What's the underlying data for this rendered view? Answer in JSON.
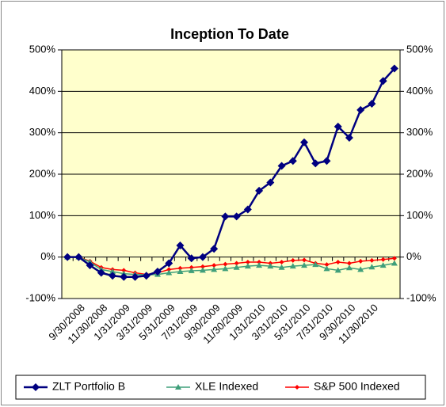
{
  "chart_data": {
    "type": "line",
    "title": "Inception To Date",
    "categories": [
      null,
      "9/30/2008",
      null,
      "11/30/2008",
      null,
      "1/31/2009",
      null,
      "3/31/2009",
      null,
      "5/31/2009",
      null,
      "7/31/2009",
      null,
      "9/30/2009",
      null,
      "11/30/2009",
      null,
      "1/31/2010",
      null,
      "3/31/2010",
      null,
      "5/31/2010",
      null,
      "7/31/2010",
      null,
      "9/30/2010",
      null,
      "11/30/2010",
      null,
      null
    ],
    "series": [
      {
        "name": "ZLT Portfolio B",
        "color": "#000080",
        "marker": "diamond",
        "values": [
          0,
          0,
          -20,
          -38,
          -45,
          -48,
          -48,
          -45,
          -35,
          -15,
          28,
          -3,
          0,
          20,
          98,
          98,
          115,
          160,
          180,
          220,
          232,
          277,
          226,
          232,
          315,
          288,
          355,
          370,
          425,
          455
        ]
      },
      {
        "name": "XLE Indexed",
        "color": "#3f9f7a",
        "marker": "triangle",
        "values": [
          0,
          0,
          -12,
          -30,
          -35,
          -40,
          -42,
          -43,
          -42,
          -38,
          -35,
          -33,
          -32,
          -30,
          -28,
          -25,
          -22,
          -20,
          -22,
          -25,
          -22,
          -20,
          -18,
          -28,
          -32,
          -26,
          -30,
          -24,
          -20,
          -15
        ]
      },
      {
        "name": "S&P 500 Indexed",
        "color": "#ff0000",
        "marker": "smalldiamond",
        "values": [
          0,
          0,
          -10,
          -25,
          -30,
          -32,
          -38,
          -42,
          -38,
          -30,
          -27,
          -25,
          -23,
          -20,
          -17,
          -15,
          -12,
          -12,
          -15,
          -12,
          -8,
          -7,
          -15,
          -18,
          -12,
          -15,
          -10,
          -8,
          -6,
          -3
        ]
      }
    ],
    "ylim": [
      -100,
      500
    ],
    "yticks": [
      {
        "value": -100,
        "label": "-100%"
      },
      {
        "value": 0,
        "label": "0%"
      },
      {
        "value": 100,
        "label": "100%"
      },
      {
        "value": 200,
        "label": "200%"
      },
      {
        "value": 300,
        "label": "300%"
      },
      {
        "value": 400,
        "label": "400%"
      },
      {
        "value": 500,
        "label": "500%"
      }
    ],
    "y2lim": [
      -100,
      500
    ],
    "y2ticks": [
      {
        "value": -100,
        "label": "-100%"
      },
      {
        "value": 0,
        "label": "0%"
      },
      {
        "value": 100,
        "label": "100%"
      },
      {
        "value": 200,
        "label": "200%"
      },
      {
        "value": 300,
        "label": "300%"
      },
      {
        "value": 400,
        "label": "400%"
      },
      {
        "value": 500,
        "label": "500%"
      }
    ],
    "grid": true,
    "plot_background": "#ffffcc",
    "legend": "bottom"
  }
}
